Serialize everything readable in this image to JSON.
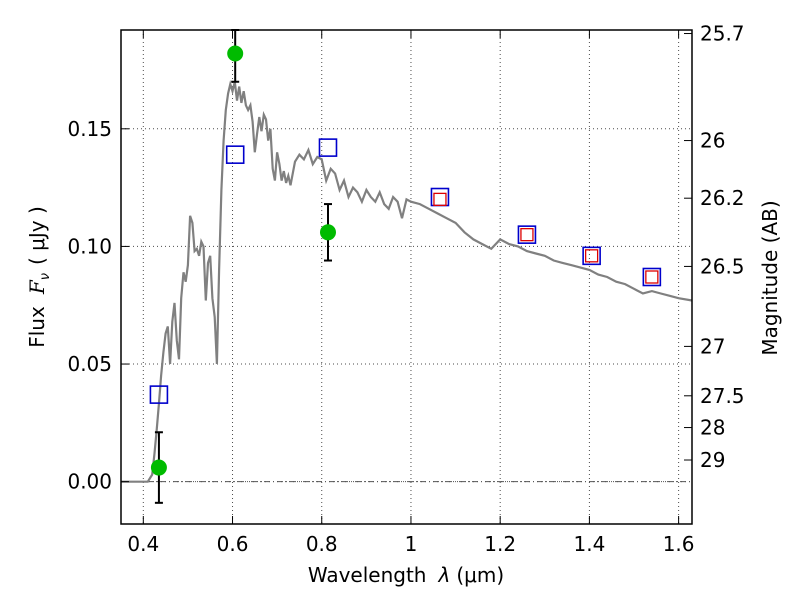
{
  "chart_data": {
    "type": "scatter",
    "xlabel": "Wavelength",
    "xlabel_symbol": "λ",
    "xlabel_unit": "(μm)",
    "ylabel_prefix": "Flux",
    "ylabel_symbol": "F",
    "ylabel_subscript": "ν",
    "ylabel_unit": "( μJy )",
    "y2label": "Magnitude (AB)",
    "xlim": [
      0.35,
      1.63
    ],
    "ylim": [
      -0.018,
      0.192
    ],
    "grid": true,
    "x_ticks": [
      {
        "value": 0.4,
        "label": "0.4"
      },
      {
        "value": 0.6,
        "label": "0.6"
      },
      {
        "value": 0.8,
        "label": "0.8"
      },
      {
        "value": 1.0,
        "label": "1"
      },
      {
        "value": 1.2,
        "label": "1.2"
      },
      {
        "value": 1.4,
        "label": "1.4"
      },
      {
        "value": 1.6,
        "label": "1.6"
      }
    ],
    "y_ticks": [
      {
        "value": 0.0,
        "label": "0.00"
      },
      {
        "value": 0.05,
        "label": "0.05"
      },
      {
        "value": 0.1,
        "label": "0.10"
      },
      {
        "value": 0.15,
        "label": "0.15"
      }
    ],
    "y2_ticks": [
      {
        "flux": 0.1905,
        "label": "25.7"
      },
      {
        "flux": 0.145,
        "label": "26"
      },
      {
        "flux": 0.1205,
        "label": "26.2"
      },
      {
        "flux": 0.0915,
        "label": "26.5"
      },
      {
        "flux": 0.0575,
        "label": "27"
      },
      {
        "flux": 0.0365,
        "label": "27.5"
      },
      {
        "flux": 0.023,
        "label": "28"
      },
      {
        "flux": 0.0092,
        "label": "29"
      }
    ],
    "model_spectrum": {
      "color": "#808080",
      "points": [
        [
          0.35,
          0.0
        ],
        [
          0.41,
          0.0
        ],
        [
          0.42,
          0.003
        ],
        [
          0.425,
          0.012
        ],
        [
          0.43,
          0.022
        ],
        [
          0.435,
          0.033
        ],
        [
          0.44,
          0.045
        ],
        [
          0.445,
          0.055
        ],
        [
          0.45,
          0.063
        ],
        [
          0.455,
          0.066
        ],
        [
          0.46,
          0.05
        ],
        [
          0.465,
          0.068
        ],
        [
          0.47,
          0.076
        ],
        [
          0.475,
          0.06
        ],
        [
          0.48,
          0.052
        ],
        [
          0.485,
          0.078
        ],
        [
          0.49,
          0.089
        ],
        [
          0.495,
          0.085
        ],
        [
          0.5,
          0.092
        ],
        [
          0.505,
          0.113
        ],
        [
          0.51,
          0.11
        ],
        [
          0.515,
          0.098
        ],
        [
          0.52,
          0.099
        ],
        [
          0.525,
          0.096
        ],
        [
          0.53,
          0.102
        ],
        [
          0.535,
          0.1
        ],
        [
          0.54,
          0.077
        ],
        [
          0.545,
          0.093
        ],
        [
          0.55,
          0.096
        ],
        [
          0.555,
          0.078
        ],
        [
          0.56,
          0.07
        ],
        [
          0.565,
          0.05
        ],
        [
          0.57,
          0.09
        ],
        [
          0.575,
          0.124
        ],
        [
          0.58,
          0.145
        ],
        [
          0.585,
          0.158
        ],
        [
          0.59,
          0.165
        ],
        [
          0.595,
          0.169
        ],
        [
          0.6,
          0.166
        ],
        [
          0.605,
          0.17
        ],
        [
          0.61,
          0.162
        ],
        [
          0.615,
          0.168
        ],
        [
          0.62,
          0.161
        ],
        [
          0.625,
          0.166
        ],
        [
          0.63,
          0.16
        ],
        [
          0.635,
          0.158
        ],
        [
          0.64,
          0.16
        ],
        [
          0.645,
          0.153
        ],
        [
          0.65,
          0.14
        ],
        [
          0.655,
          0.148
        ],
        [
          0.66,
          0.155
        ],
        [
          0.665,
          0.149
        ],
        [
          0.67,
          0.156
        ],
        [
          0.675,
          0.154
        ],
        [
          0.68,
          0.145
        ],
        [
          0.685,
          0.15
        ],
        [
          0.69,
          0.133
        ],
        [
          0.695,
          0.128
        ],
        [
          0.7,
          0.14
        ],
        [
          0.705,
          0.135
        ],
        [
          0.71,
          0.128
        ],
        [
          0.715,
          0.132
        ],
        [
          0.72,
          0.127
        ],
        [
          0.725,
          0.13
        ],
        [
          0.73,
          0.126
        ],
        [
          0.74,
          0.136
        ],
        [
          0.75,
          0.139
        ],
        [
          0.76,
          0.137
        ],
        [
          0.77,
          0.141
        ],
        [
          0.78,
          0.135
        ],
        [
          0.79,
          0.138
        ],
        [
          0.8,
          0.137
        ],
        [
          0.81,
          0.128
        ],
        [
          0.82,
          0.133
        ],
        [
          0.83,
          0.131
        ],
        [
          0.84,
          0.124
        ],
        [
          0.85,
          0.128
        ],
        [
          0.86,
          0.121
        ],
        [
          0.87,
          0.125
        ],
        [
          0.88,
          0.123
        ],
        [
          0.89,
          0.119
        ],
        [
          0.9,
          0.124
        ],
        [
          0.91,
          0.121
        ],
        [
          0.92,
          0.119
        ],
        [
          0.93,
          0.123
        ],
        [
          0.94,
          0.118
        ],
        [
          0.95,
          0.116
        ],
        [
          0.96,
          0.121
        ],
        [
          0.97,
          0.119
        ],
        [
          0.98,
          0.112
        ],
        [
          0.99,
          0.12
        ],
        [
          1.0,
          0.119
        ],
        [
          1.02,
          0.118
        ],
        [
          1.04,
          0.116
        ],
        [
          1.06,
          0.114
        ],
        [
          1.08,
          0.112
        ],
        [
          1.1,
          0.11
        ],
        [
          1.12,
          0.106
        ],
        [
          1.14,
          0.103
        ],
        [
          1.16,
          0.101
        ],
        [
          1.18,
          0.099
        ],
        [
          1.2,
          0.103
        ],
        [
          1.22,
          0.101
        ],
        [
          1.24,
          0.1
        ],
        [
          1.26,
          0.098
        ],
        [
          1.28,
          0.097
        ],
        [
          1.3,
          0.096
        ],
        [
          1.32,
          0.094
        ],
        [
          1.34,
          0.093
        ],
        [
          1.36,
          0.092
        ],
        [
          1.38,
          0.091
        ],
        [
          1.4,
          0.09
        ],
        [
          1.42,
          0.088
        ],
        [
          1.44,
          0.087
        ],
        [
          1.46,
          0.085
        ],
        [
          1.48,
          0.084
        ],
        [
          1.5,
          0.082
        ],
        [
          1.52,
          0.08
        ],
        [
          1.54,
          0.081
        ],
        [
          1.56,
          0.08
        ],
        [
          1.58,
          0.079
        ],
        [
          1.6,
          0.078
        ],
        [
          1.63,
          0.077
        ]
      ]
    },
    "observed_flux": {
      "color": "#00bb00",
      "points": [
        {
          "x": 0.435,
          "y": 0.006,
          "err": 0.015
        },
        {
          "x": 0.606,
          "y": 0.182,
          "err": 0.012
        },
        {
          "x": 0.814,
          "y": 0.106,
          "err": 0.012
        }
      ]
    },
    "model_photometry_blue": {
      "color": "#0000cc",
      "points": [
        [
          0.435,
          0.037
        ],
        [
          0.606,
          0.139
        ],
        [
          0.814,
          0.142
        ],
        [
          1.065,
          0.121
        ],
        [
          1.26,
          0.105
        ],
        [
          1.405,
          0.096
        ],
        [
          1.54,
          0.087
        ]
      ]
    },
    "model_photometry_red": {
      "color": "#dd0000",
      "points": [
        [
          1.065,
          0.12
        ],
        [
          1.26,
          0.105
        ],
        [
          1.405,
          0.096
        ],
        [
          1.54,
          0.087
        ]
      ]
    }
  }
}
